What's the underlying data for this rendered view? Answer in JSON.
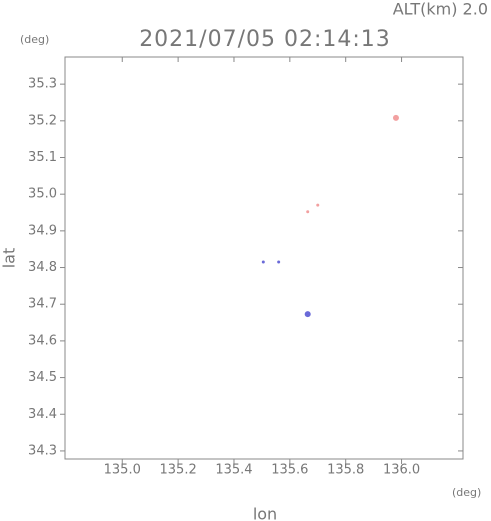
{
  "chart_data": {
    "type": "scatter",
    "title": "2021/07/05 02:14:13",
    "subtitle": "ALT(km) 2.0",
    "y_unit": "(deg)",
    "x_unit": "(deg)",
    "xlabel": "lon",
    "ylabel": "lat",
    "xlim": [
      134.795,
      136.22
    ],
    "ylim": [
      34.278,
      35.374
    ],
    "xticks": [
      {
        "value": 135,
        "label": "135.0"
      },
      135.2,
      135.4,
      135.6,
      135.8,
      {
        "value": 136,
        "label": "136.0"
      }
    ],
    "yticks": [
      35.3,
      35.2,
      35.1,
      {
        "value": 35,
        "label": "35.0"
      },
      34.9,
      34.8,
      34.7,
      34.6,
      34.5,
      34.4,
      34.3
    ],
    "series": [
      {
        "color": "#f2a0a0",
        "x": [
          135.98,
          135.7,
          135.664
        ],
        "values": [
          35.208,
          34.97,
          34.952
        ]
      },
      {
        "color": "#6a6ad8",
        "x": [
          135.664,
          135.505,
          135.56
        ],
        "values": [
          34.673,
          34.815,
          34.815
        ]
      }
    ]
  }
}
